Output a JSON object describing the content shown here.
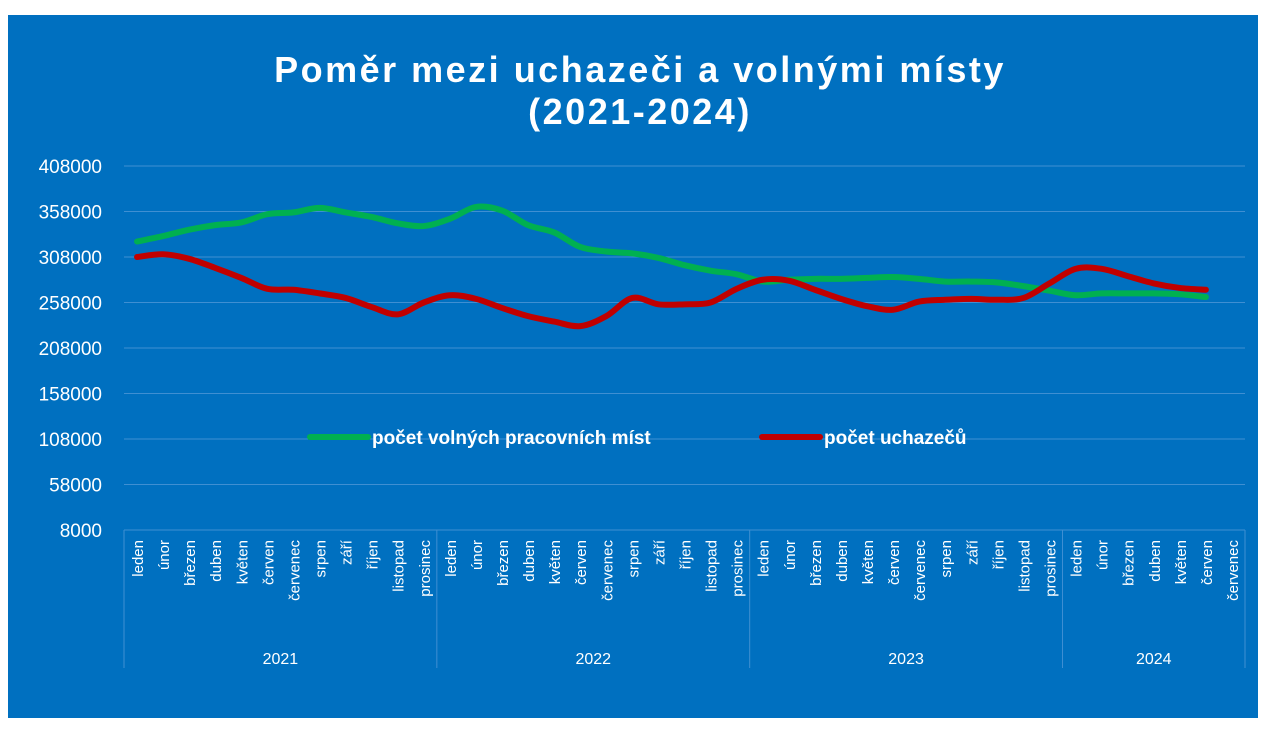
{
  "chart_data": {
    "type": "line",
    "title_lines": [
      "Poměr mezi uchazeči a volnými místy",
      "(2021-2024)"
    ],
    "categories": [
      "leden",
      "únor",
      "březen",
      "duben",
      "květen",
      "červen",
      "červenec",
      "srpen",
      "září",
      "říjen",
      "listopad",
      "prosinec",
      "leden",
      "únor",
      "březen",
      "duben",
      "květen",
      "červen",
      "červenec",
      "srpen",
      "září",
      "říjen",
      "listopad",
      "prosinec",
      "leden",
      "únor",
      "březen",
      "duben",
      "květen",
      "červen",
      "červenec",
      "srpen",
      "září",
      "říjen",
      "listopad",
      "prosinec",
      "leden",
      "únor",
      "březen",
      "duben",
      "květen",
      "červen",
      "červenec"
    ],
    "year_groups": [
      {
        "label": "2021",
        "count": 12
      },
      {
        "label": "2022",
        "count": 12
      },
      {
        "label": "2023",
        "count": 12
      },
      {
        "label": "2024",
        "count": 7
      }
    ],
    "series": [
      {
        "name": "počet volných pracovních míst",
        "color": "#00b050",
        "values": [
          325000,
          331000,
          338000,
          343000,
          346000,
          355000,
          357000,
          362000,
          357000,
          352000,
          345000,
          342000,
          350000,
          363000,
          359000,
          343000,
          335000,
          319000,
          314000,
          312000,
          307000,
          299000,
          293000,
          289000,
          281000,
          283000,
          284000,
          284000,
          285000,
          286000,
          284000,
          281000,
          281000,
          280000,
          276000,
          271000,
          266000,
          268000,
          268000,
          268000,
          267000,
          264000,
          null
        ]
      },
      {
        "name": "počet uchazečů",
        "color": "#c00000",
        "values": [
          308000,
          311000,
          306000,
          296000,
          285000,
          273000,
          272000,
          268000,
          263000,
          253000,
          245000,
          258000,
          266000,
          262000,
          252000,
          243000,
          237000,
          232000,
          243000,
          263000,
          256000,
          256000,
          258000,
          273000,
          283000,
          282000,
          272000,
          262000,
          254000,
          250000,
          259000,
          261000,
          262000,
          261000,
          263000,
          279000,
          295000,
          295000,
          287000,
          279000,
          274000,
          272000,
          null
        ]
      }
    ],
    "ylim": [
      8000,
      408000
    ],
    "yticks": [
      8000,
      58000,
      108000,
      158000,
      208000,
      258000,
      308000,
      358000,
      408000
    ],
    "grid": true,
    "legend": "center"
  }
}
